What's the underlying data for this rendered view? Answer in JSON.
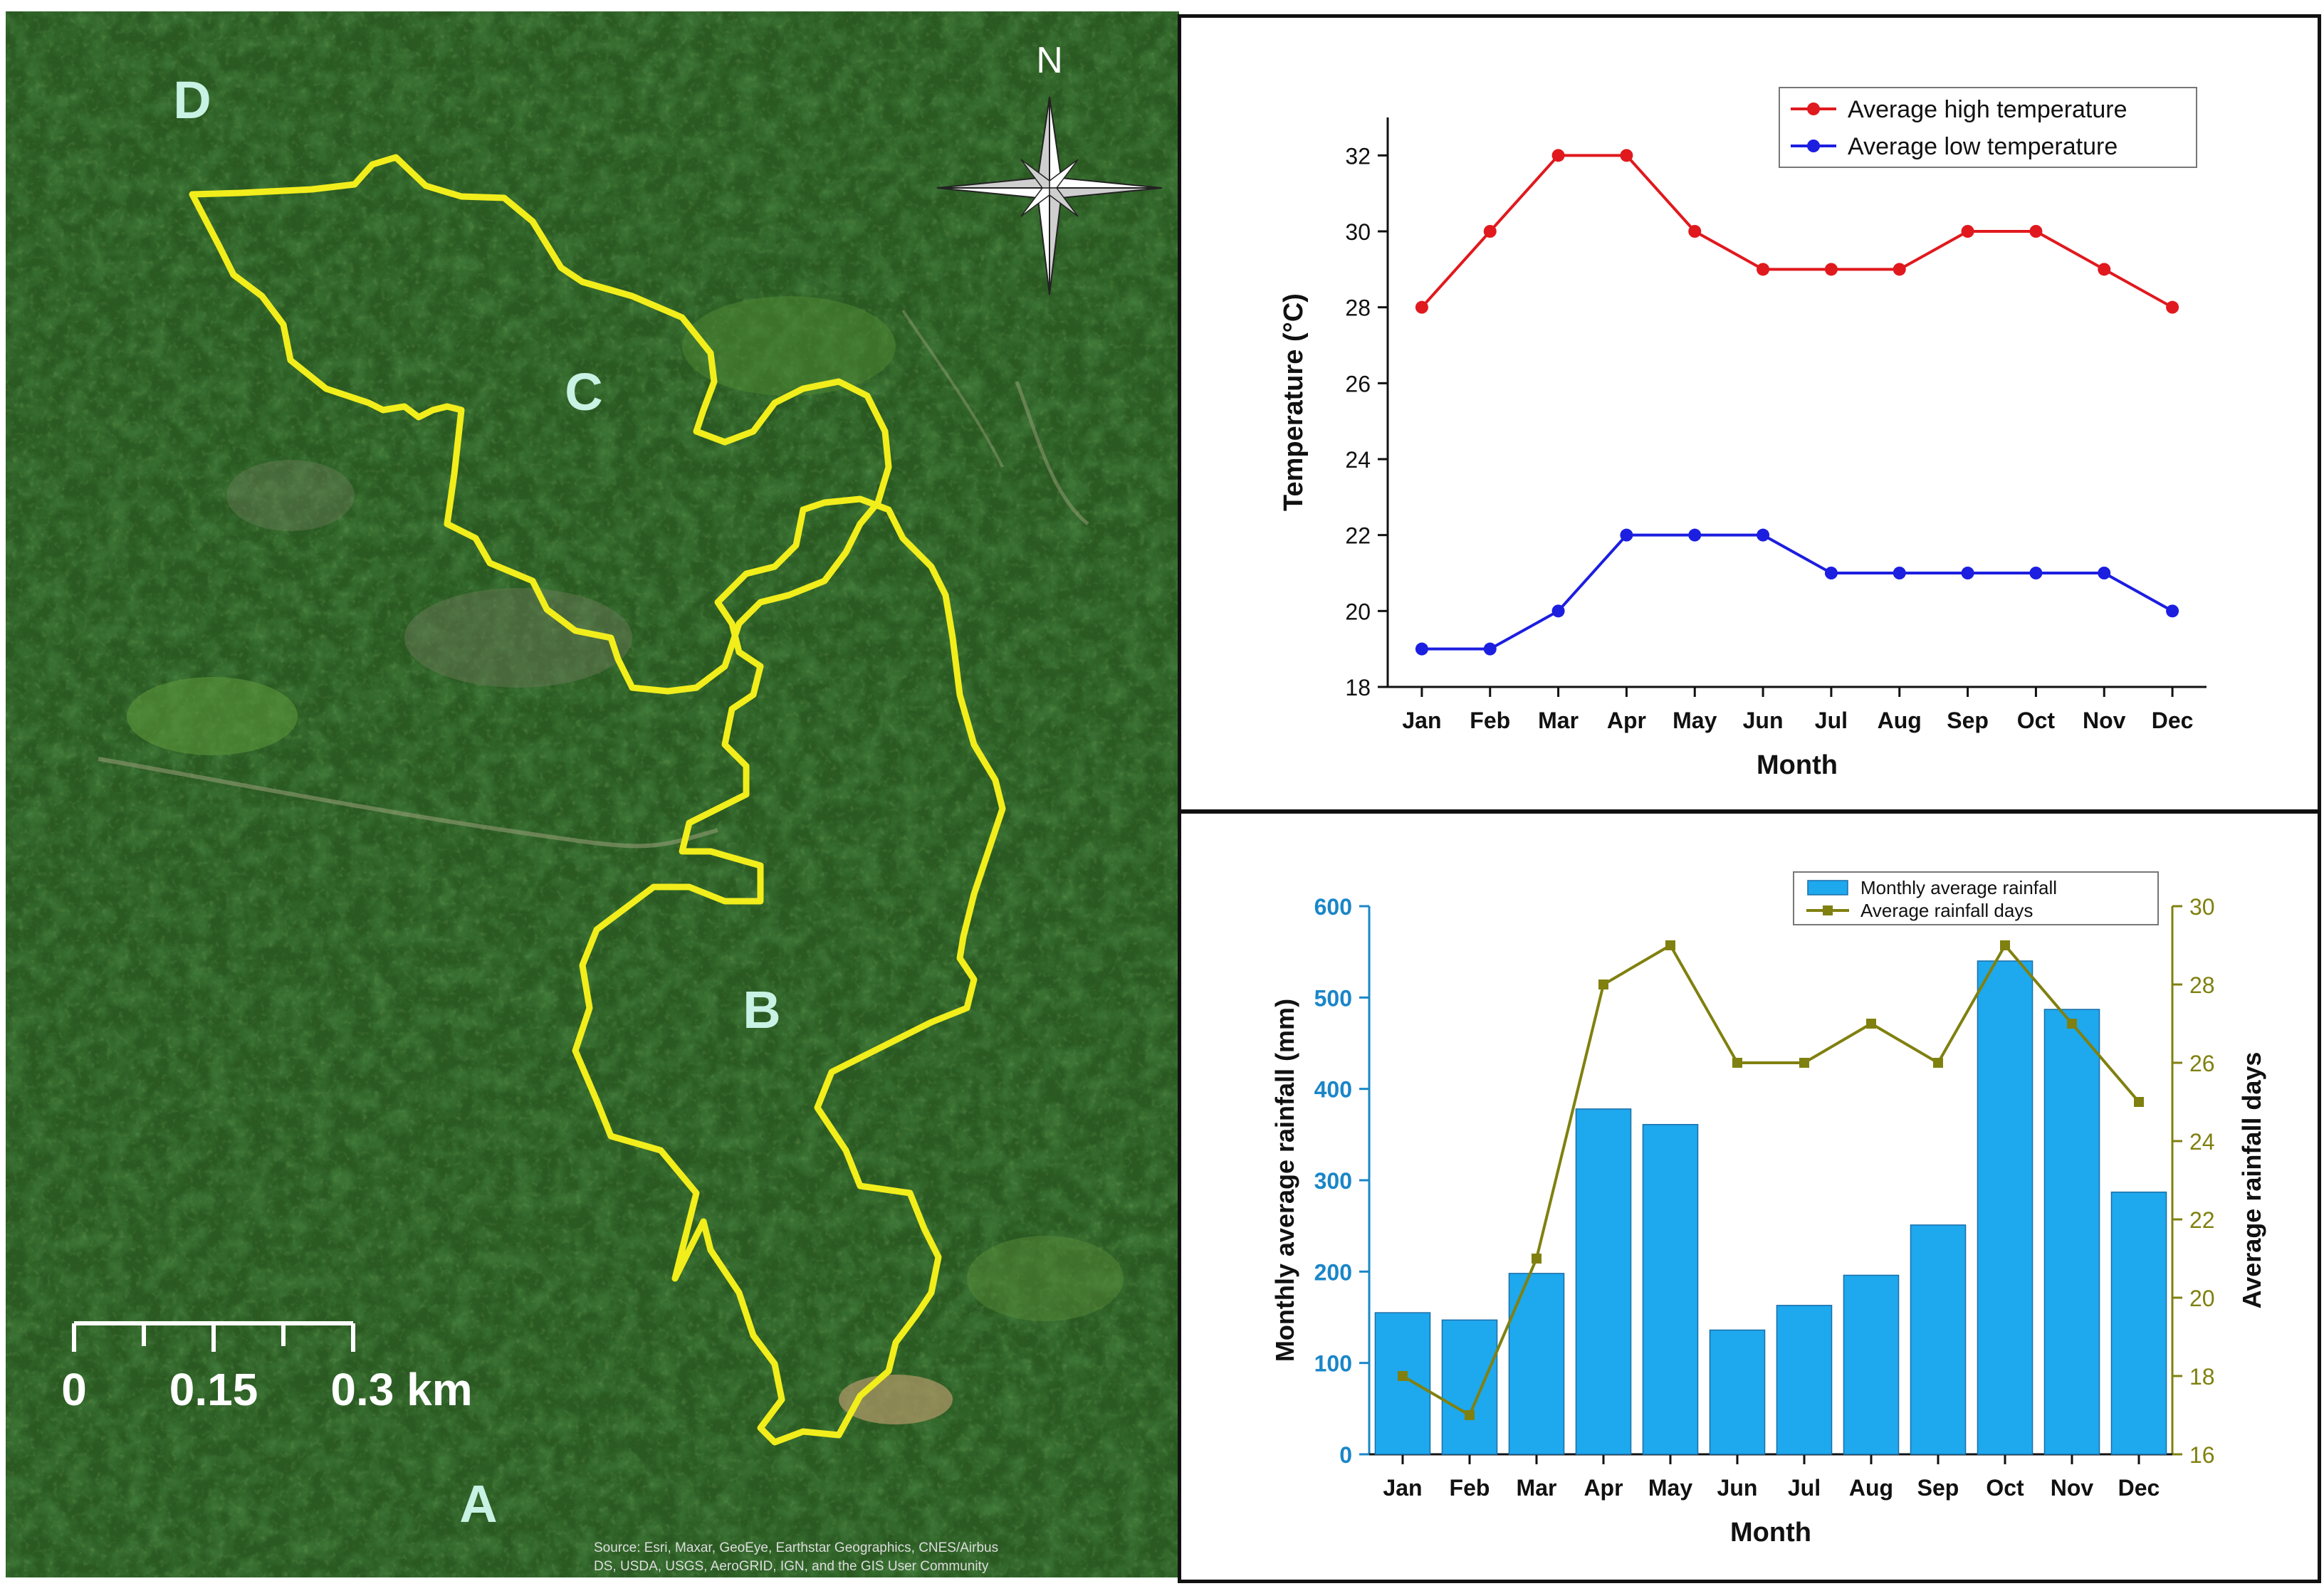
{
  "map": {
    "region_labels": [
      "A",
      "B",
      "C",
      "D"
    ],
    "compass_label": "N",
    "compass_icon": "north-arrow-compass-rose",
    "scale_bar": {
      "ticks": [
        "0",
        "0.15",
        "0.3 km"
      ]
    },
    "attribution": [
      "Source: Esri, Maxar, GeoEye, Earthstar Geographics, CNES/Airbus",
      "DS, USDA, USGS, AeroGRID, IGN, and the GIS User Community"
    ],
    "boundary_color": "#f2ee1c",
    "label_color": "#c8f2e4"
  },
  "chart_data": [
    {
      "type": "line",
      "title": "",
      "xlabel": "Month",
      "ylabel": "Temperature (°C)",
      "categories": [
        "Jan",
        "Feb",
        "Mar",
        "Apr",
        "May",
        "Jun",
        "Jul",
        "Aug",
        "Sep",
        "Oct",
        "Nov",
        "Dec"
      ],
      "ylim": [
        18,
        33
      ],
      "yticks": [
        18,
        20,
        22,
        24,
        26,
        28,
        30,
        32
      ],
      "legend_position": "top-right",
      "grid": false,
      "series": [
        {
          "name": "Average high temperature",
          "color": "#e0191e",
          "values": [
            28,
            30,
            32,
            32,
            30,
            29,
            29,
            29,
            30,
            30,
            29,
            28
          ]
        },
        {
          "name": "Average low temperature",
          "color": "#1c1ee0",
          "values": [
            19,
            19,
            20,
            22,
            22,
            22,
            21,
            21,
            21,
            21,
            21,
            20
          ]
        }
      ]
    },
    {
      "type": "bar",
      "title": "",
      "xlabel": "Month",
      "ylabel": "Monthly average rainfall (mm)",
      "y2label": "Average rainfall days",
      "categories": [
        "Jan",
        "Feb",
        "Mar",
        "Apr",
        "May",
        "Jun",
        "Jul",
        "Aug",
        "Sep",
        "Oct",
        "Nov",
        "Dec"
      ],
      "ylim": [
        0,
        600
      ],
      "yticks": [
        0,
        100,
        200,
        300,
        400,
        500,
        600
      ],
      "y2lim": [
        16,
        30
      ],
      "y2ticks": [
        16,
        18,
        20,
        22,
        24,
        26,
        28,
        30
      ],
      "legend_position": "top-right",
      "grid": false,
      "left_axis_color": "#1a86c8",
      "right_axis_color": "#808010",
      "series": [
        {
          "name": "Monthly average rainfall",
          "kind": "bar",
          "axis": "left",
          "color": "#1ea8ee",
          "values": [
            155,
            147,
            198,
            378,
            361,
            136,
            163,
            196,
            251,
            540,
            487,
            287
          ]
        },
        {
          "name": "Average rainfall days",
          "kind": "line",
          "axis": "right",
          "color": "#808010",
          "values": [
            18,
            17,
            21,
            28,
            29,
            26,
            26,
            27,
            26,
            29,
            27,
            25
          ]
        }
      ]
    }
  ]
}
